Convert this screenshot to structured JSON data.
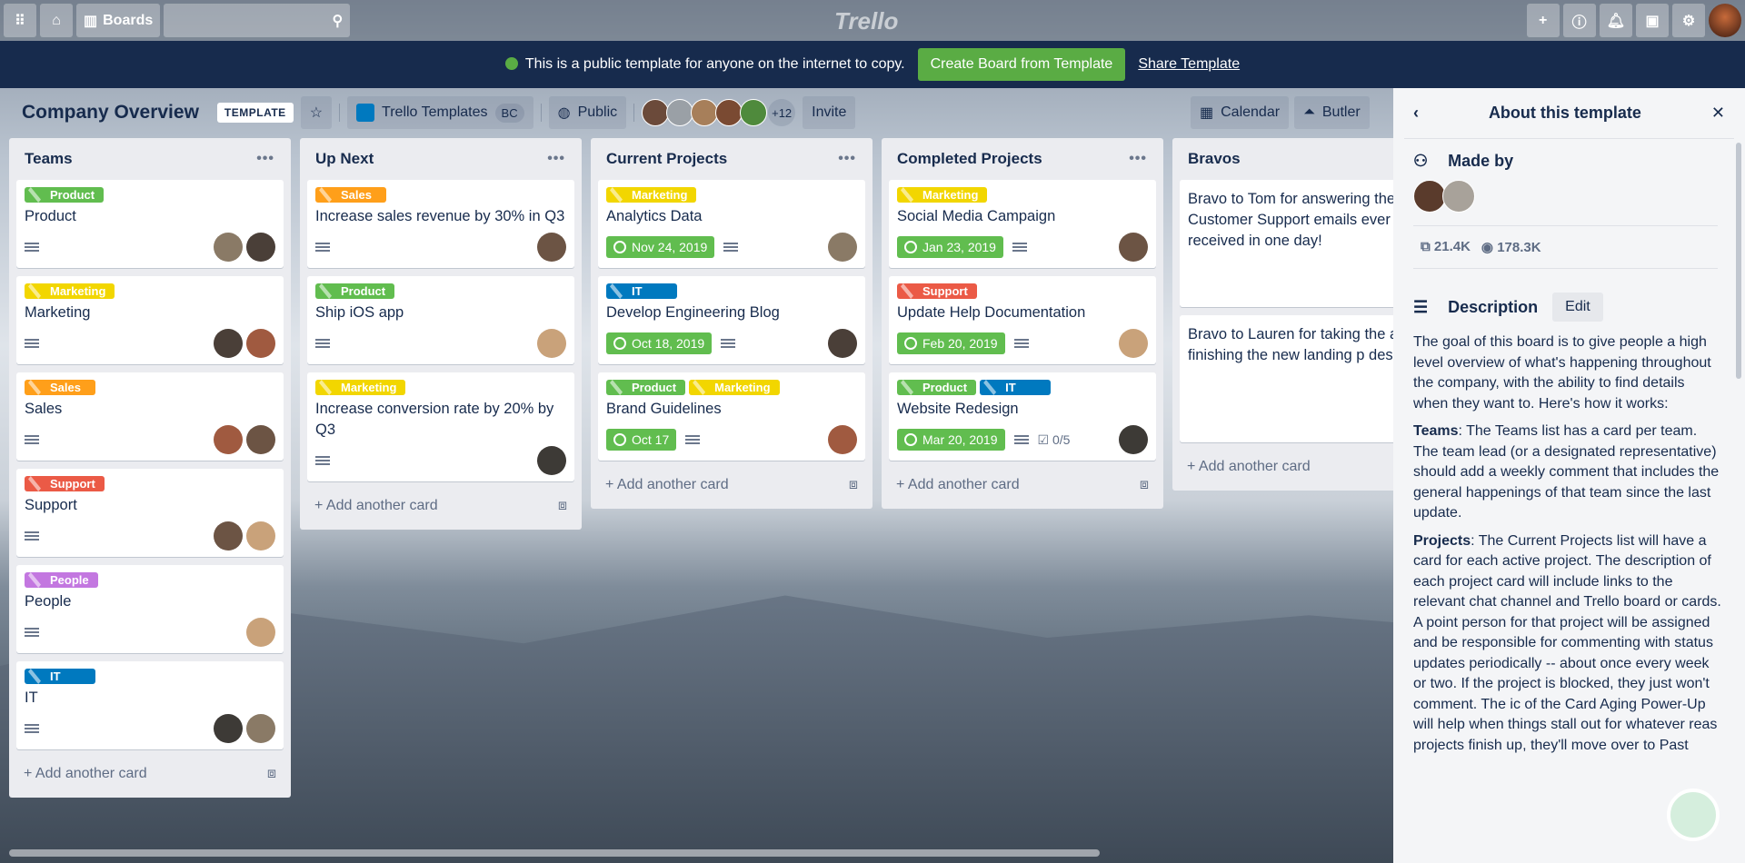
{
  "topbar": {
    "boards": "Boards",
    "logo": "Trello"
  },
  "banner": {
    "text": "This is a public template for anyone on the internet to copy.",
    "create": "Create Board from Template",
    "share": "Share Template"
  },
  "board": {
    "title": "Company Overview",
    "template_tag": "TEMPLATE",
    "team": "Trello Templates",
    "team_badge": "BC",
    "visibility": "Public",
    "more_members": "+12",
    "invite": "Invite",
    "calendar": "Calendar",
    "butler": "Butler"
  },
  "colors": {
    "green": "#61bd4f",
    "yellow": "#f2d600",
    "orange": "#ff9f1a",
    "red": "#eb5a46",
    "purple": "#c377e0",
    "blue": "#0079bf"
  },
  "add_card": "Add another card",
  "lists": [
    {
      "title": "Teams",
      "cards": [
        {
          "labels": [
            {
              "text": "Product",
              "color": "#61bd4f"
            }
          ],
          "title": "Product",
          "avatars": 2
        },
        {
          "labels": [
            {
              "text": "Marketing",
              "color": "#f2d600"
            }
          ],
          "title": "Marketing",
          "avatars": 2
        },
        {
          "labels": [
            {
              "text": "Sales",
              "color": "#ff9f1a"
            }
          ],
          "title": "Sales",
          "avatars": 2
        },
        {
          "labels": [
            {
              "text": "Support",
              "color": "#eb5a46"
            }
          ],
          "title": "Support",
          "avatars": 2
        },
        {
          "labels": [
            {
              "text": "People",
              "color": "#c377e0"
            }
          ],
          "title": "People",
          "avatars": 1
        },
        {
          "labels": [
            {
              "text": "IT",
              "color": "#0079bf"
            }
          ],
          "title": "IT",
          "avatars": 2
        }
      ]
    },
    {
      "title": "Up Next",
      "cards": [
        {
          "labels": [
            {
              "text": "Sales",
              "color": "#ff9f1a"
            }
          ],
          "title": "Increase sales revenue by 30% in Q3",
          "avatars": 1
        },
        {
          "labels": [
            {
              "text": "Product",
              "color": "#61bd4f"
            }
          ],
          "title": "Ship iOS app",
          "avatars": 1
        },
        {
          "labels": [
            {
              "text": "Marketing",
              "color": "#f2d600"
            }
          ],
          "title": "Increase conversion rate by 20% by Q3",
          "avatars": 1
        }
      ]
    },
    {
      "title": "Current Projects",
      "cards": [
        {
          "labels": [
            {
              "text": "Marketing",
              "color": "#f2d600"
            }
          ],
          "title": "Analytics Data",
          "due": "Nov 24, 2019",
          "avatars": 1
        },
        {
          "labels": [
            {
              "text": "IT",
              "color": "#0079bf"
            }
          ],
          "title": "Develop Engineering Blog",
          "due": "Oct 18, 2019",
          "avatars": 1
        },
        {
          "labels": [
            {
              "text": "Product",
              "color": "#61bd4f"
            },
            {
              "text": "Marketing",
              "color": "#f2d600"
            }
          ],
          "title": "Brand Guidelines",
          "due": "Oct 17",
          "avatars": 1
        }
      ]
    },
    {
      "title": "Completed Projects",
      "cards": [
        {
          "labels": [
            {
              "text": "Marketing",
              "color": "#f2d600"
            }
          ],
          "title": "Social Media Campaign",
          "due": "Jan 23, 2019",
          "avatars": 1
        },
        {
          "labels": [
            {
              "text": "Support",
              "color": "#eb5a46"
            }
          ],
          "title": "Update Help Documentation",
          "due": "Feb 20, 2019",
          "avatars": 1
        },
        {
          "labels": [
            {
              "text": "Product",
              "color": "#61bd4f"
            },
            {
              "text": "IT",
              "color": "#0079bf"
            }
          ],
          "title": "Website Redesign",
          "due": "Mar 20, 2019",
          "checklist": "0/5",
          "avatars": 1
        }
      ]
    },
    {
      "title": "Bravos",
      "cards": [
        {
          "title": "Bravo to Tom for answering the Customer Support emails ever received in one day!"
        },
        {
          "title": "Bravo to Lauren for taking the and finishing the new landing p design!"
        }
      ]
    }
  ],
  "sidebar": {
    "title": "About this template",
    "made_by": "Made by",
    "copies": "21.4K",
    "views": "178.3K",
    "description": "Description",
    "edit": "Edit",
    "paragraphs": [
      {
        "bold": "",
        "text": "The goal of this board is to give people a high level overview of what's happening throughout the company, with the ability to find details when they want to. Here's how it works:"
      },
      {
        "bold": "Teams",
        "text": ": The Teams list has a card per team. The team lead (or a designated representative) should add a weekly comment that includes the general happenings of that team since the last update."
      },
      {
        "bold": "Projects",
        "text": ": The Current Projects list will have a card for each active project. The description of each project card will include links to the relevant chat channel and Trello board or cards. A point person for that project will be assigned and be responsible for commenting with status updates periodically -- about once every week or two. If the project is blocked, they just won't comment. The ic of the Card Aging Power-Up will help when things stall out for whatever reas projects finish up, they'll move over to Past"
      }
    ]
  }
}
